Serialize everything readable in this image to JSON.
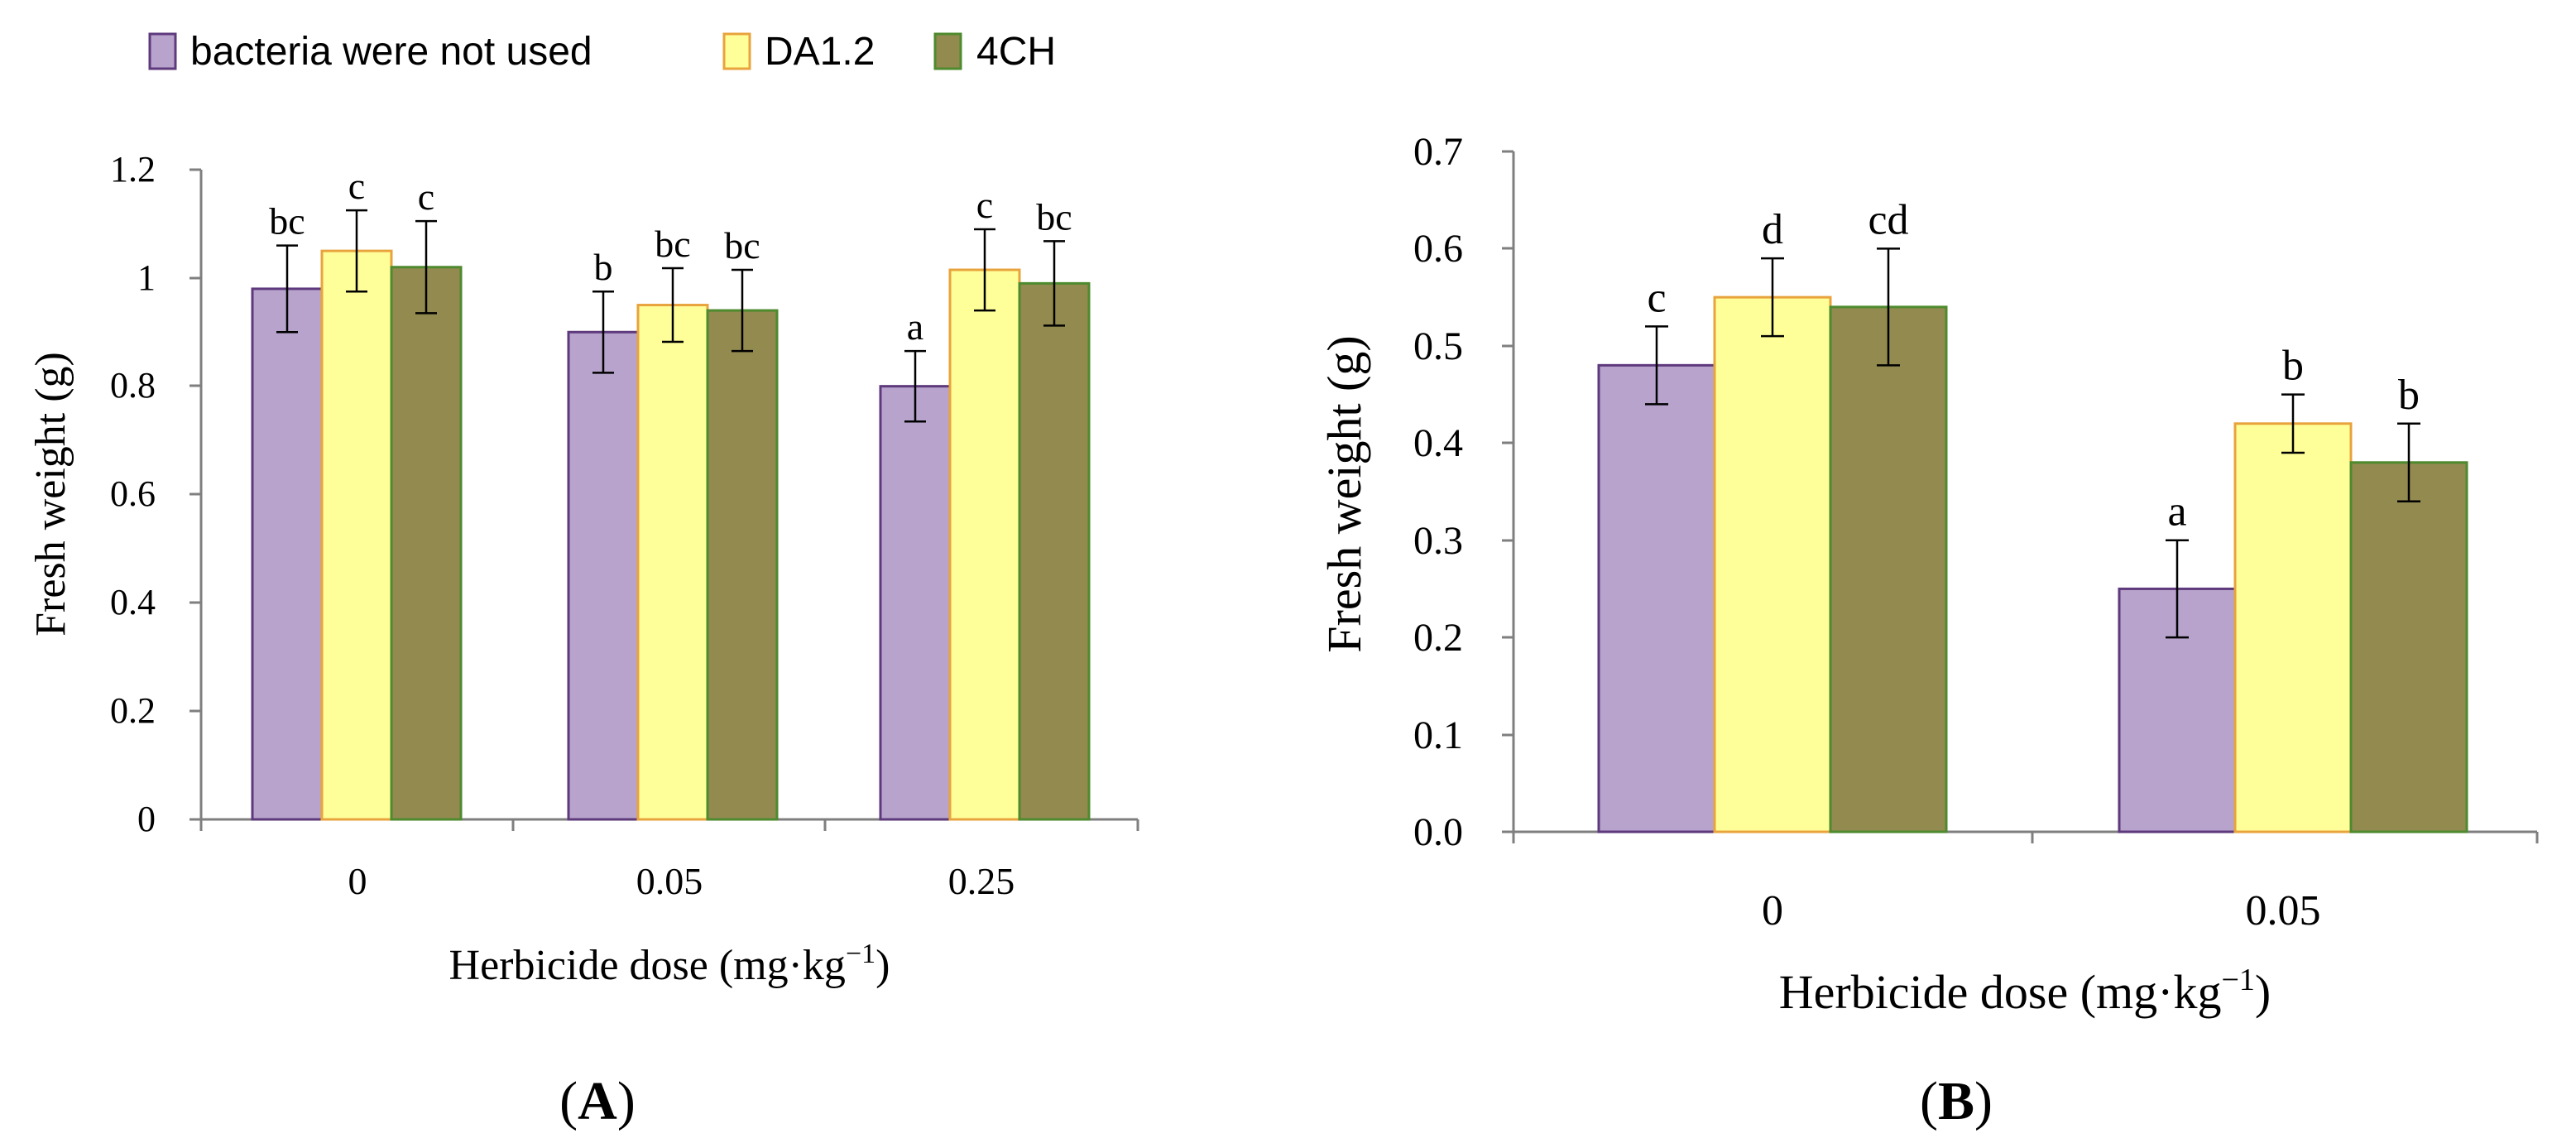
{
  "colors": {
    "none_fill": "#b7a3cc",
    "none_stroke": "#5e3a7d",
    "da_fill": "#ffff99",
    "da_stroke": "#e8a33d",
    "ch_fill": "#938a4f",
    "ch_stroke": "#4e8a2e",
    "axis": "#7f7f7f",
    "text": "#000000"
  },
  "legend": {
    "items": [
      {
        "label": "bacteria were not used"
      },
      {
        "label": "DA1.2"
      },
      {
        "label": "4CH"
      }
    ]
  },
  "chart_data": [
    {
      "type": "bar",
      "panel_label": "A",
      "ylabel": "Fresh weight  (g)",
      "xlabel_main": "Herbicide dose (mg·kg",
      "xlabel_sup": "−1",
      "xlabel_end": ")",
      "categories": [
        "0",
        "0.05",
        "0.25"
      ],
      "ylim": [
        0,
        1.2
      ],
      "yticks": [
        0,
        0.2,
        0.4,
        0.6,
        0.8,
        1,
        1.2
      ],
      "ytick_labels": [
        "0",
        "0.2",
        "0.4",
        "0.6",
        "0.8",
        "1",
        "1.2"
      ],
      "series": [
        {
          "name": "bacteria were not used",
          "values": [
            0.98,
            0.9,
            0.8
          ],
          "errors": [
            0.08,
            0.075,
            0.065
          ],
          "letters": [
            "bc",
            "b",
            "a"
          ]
        },
        {
          "name": "DA1.2",
          "values": [
            1.05,
            0.95,
            1.015
          ],
          "errors": [
            0.075,
            0.068,
            0.075
          ],
          "letters": [
            "c",
            "bc",
            "c"
          ]
        },
        {
          "name": "4CH",
          "values": [
            1.02,
            0.94,
            0.99
          ],
          "errors": [
            0.085,
            0.075,
            0.078
          ],
          "letters": [
            "c",
            "bc",
            "bc"
          ]
        }
      ]
    },
    {
      "type": "bar",
      "panel_label": "B",
      "ylabel": "Fresh weight  (g)",
      "xlabel_main": "Herbicide dose (mg·kg",
      "xlabel_sup": "−1",
      "xlabel_end": ")",
      "categories": [
        "0",
        "0.05"
      ],
      "ylim": [
        0,
        0.7
      ],
      "yticks": [
        0,
        0.1,
        0.2,
        0.3,
        0.4,
        0.5,
        0.6,
        0.7
      ],
      "ytick_labels": [
        "0.0",
        "0.1",
        "0.2",
        "0.3",
        "0.4",
        "0.5",
        "0.6",
        "0.7"
      ],
      "series": [
        {
          "name": "bacteria were not used",
          "values": [
            0.48,
            0.25
          ],
          "errors": [
            0.04,
            0.05
          ],
          "letters": [
            "c",
            "a"
          ]
        },
        {
          "name": "DA1.2",
          "values": [
            0.55,
            0.42
          ],
          "errors": [
            0.04,
            0.03
          ],
          "letters": [
            "d",
            "b"
          ]
        },
        {
          "name": "4CH",
          "values": [
            0.54,
            0.38
          ],
          "errors": [
            0.06,
            0.04
          ],
          "letters": [
            "cd",
            "b"
          ]
        }
      ]
    }
  ]
}
